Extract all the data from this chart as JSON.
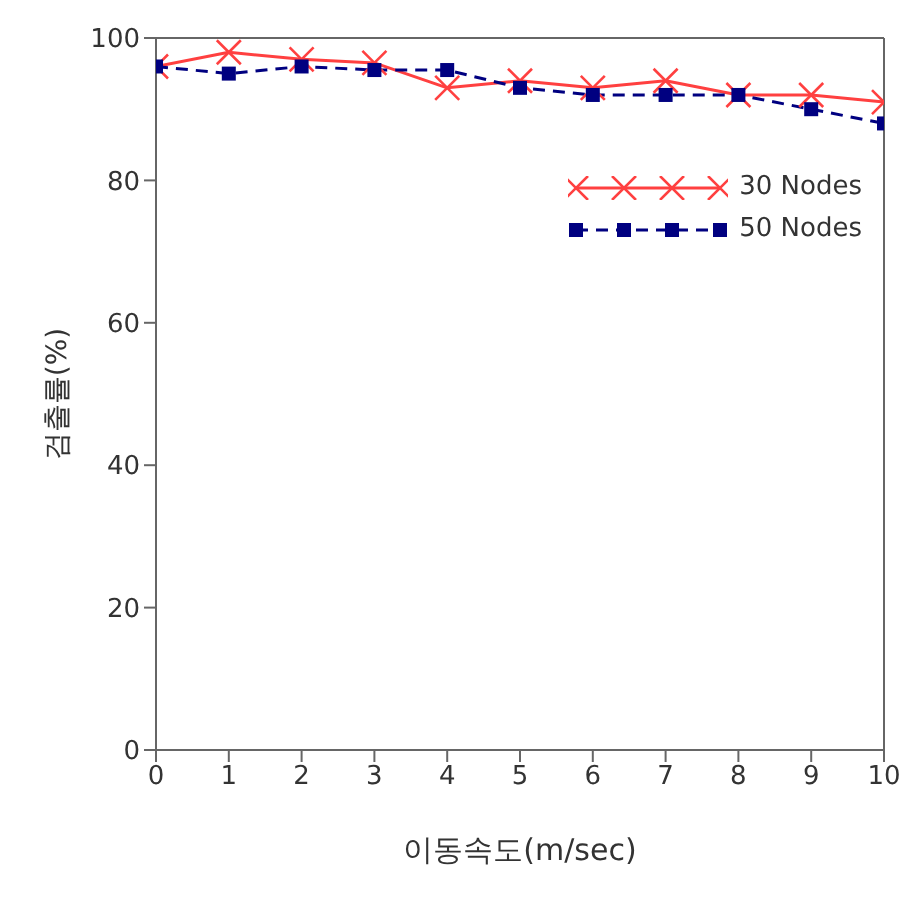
{
  "chart_data": {
    "type": "line",
    "xlabel": "이동속도(m/sec)",
    "ylabel": "검출률(%)",
    "x": [
      0,
      1,
      2,
      3,
      4,
      5,
      6,
      7,
      8,
      9,
      10
    ],
    "xlim": [
      0,
      10
    ],
    "xticks": [
      0,
      1,
      2,
      3,
      4,
      5,
      6,
      7,
      8,
      9,
      10
    ],
    "ylim": [
      0,
      100
    ],
    "yticks": [
      0,
      20,
      40,
      60,
      80,
      100
    ],
    "grid": false,
    "legend": "top right",
    "series": [
      {
        "name": "30 Nodes",
        "color": "#ff4040",
        "marker": "cross",
        "line_style": "solid",
        "values": [
          96,
          98,
          97,
          96.5,
          93,
          94,
          93,
          94,
          92,
          92,
          91
        ]
      },
      {
        "name": "50 Nodes",
        "color": "#000080",
        "marker": "square",
        "line_style": "dashed",
        "values": [
          96,
          95,
          96,
          95.5,
          95.5,
          93,
          92,
          92,
          92,
          90,
          88
        ]
      }
    ]
  }
}
